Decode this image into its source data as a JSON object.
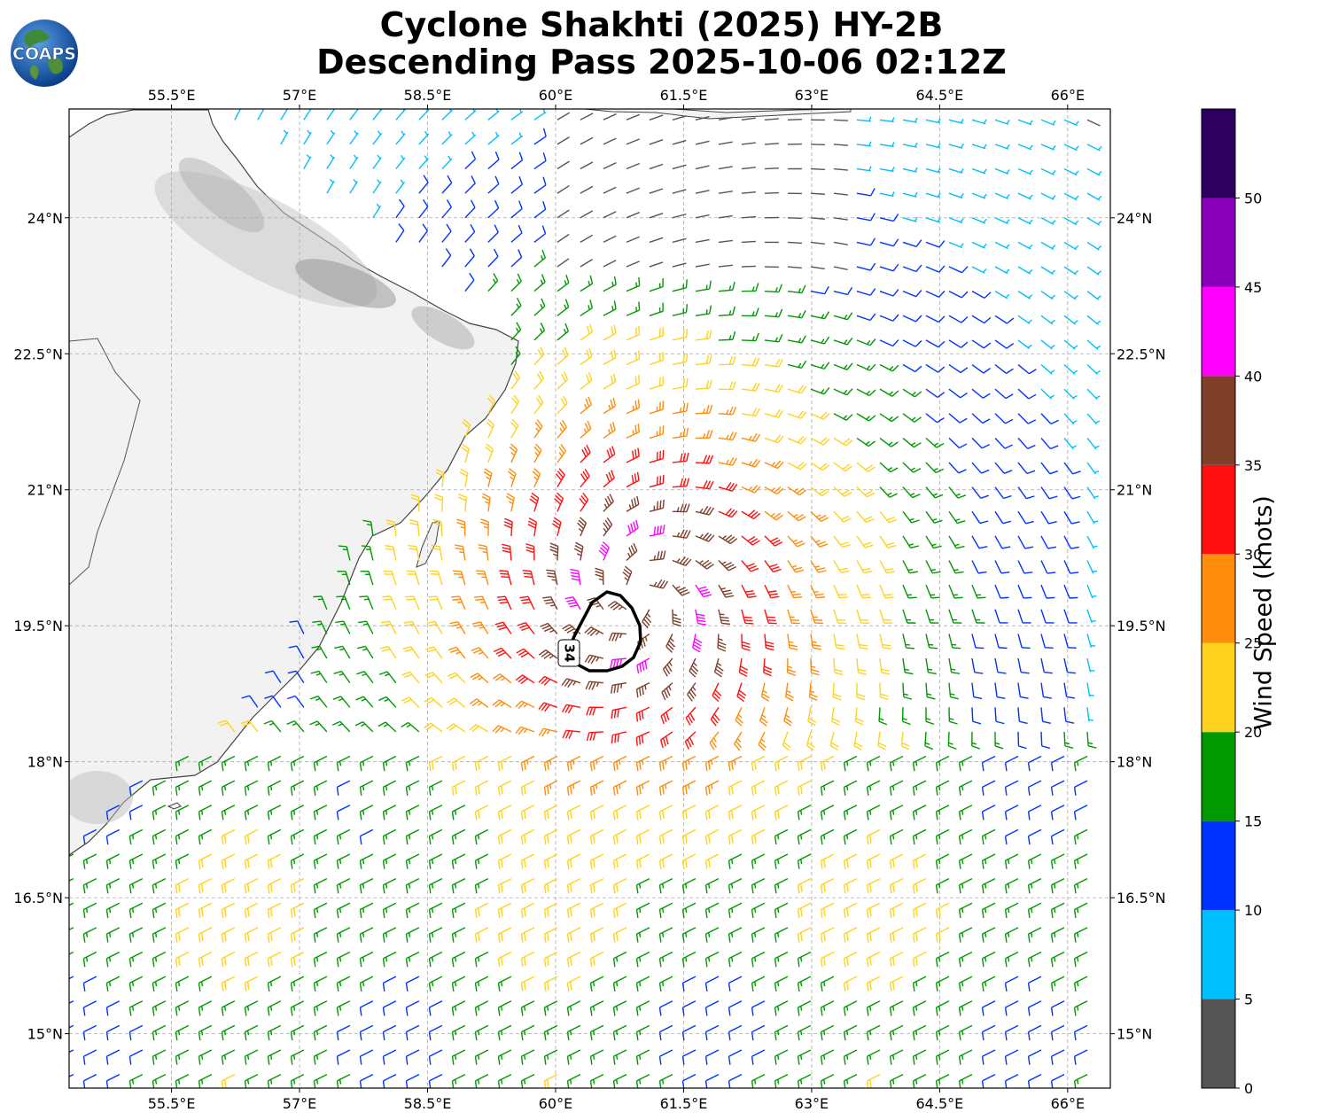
{
  "title": {
    "line1": "Cyclone Shakhti (2025) HY-2B",
    "line2": "Descending Pass 2025-10-06 02:12Z"
  },
  "logo_text": "COAPS",
  "map": {
    "lon_range": [
      54.3,
      66.5
    ],
    "lat_range": [
      14.4,
      25.2
    ],
    "lon_ticks": [
      "55.5°E",
      "57°E",
      "58.5°E",
      "60°E",
      "61.5°E",
      "63°E",
      "64.5°E",
      "66°E"
    ],
    "lat_ticks": [
      "24°N",
      "22.5°N",
      "21°N",
      "19.5°N",
      "18°N",
      "16.5°N",
      "15°N"
    ],
    "gridlines": true,
    "storm_center": {
      "lon": 61.0,
      "lat": 19.8
    },
    "contour_label": "34",
    "contour_color": "#000000"
  },
  "colorbar": {
    "label": "Wind Speed (knots)",
    "tick_labels": [
      "0",
      "5",
      "10",
      "15",
      "20",
      "25",
      "30",
      "35",
      "40",
      "45",
      "50"
    ],
    "bins": [
      {
        "range": [
          0,
          5
        ],
        "color": "#555555"
      },
      {
        "range": [
          5,
          10
        ],
        "color": "#00bfff"
      },
      {
        "range": [
          10,
          15
        ],
        "color": "#0033ff"
      },
      {
        "range": [
          15,
          20
        ],
        "color": "#009900"
      },
      {
        "range": [
          20,
          25
        ],
        "color": "#ffd21f"
      },
      {
        "range": [
          25,
          30
        ],
        "color": "#ff8c0a"
      },
      {
        "range": [
          30,
          35
        ],
        "color": "#ff1010"
      },
      {
        "range": [
          35,
          40
        ],
        "color": "#7f3f2a"
      },
      {
        "range": [
          40,
          45
        ],
        "color": "#ff00ff"
      },
      {
        "range": [
          45,
          50
        ],
        "color": "#8a00b8"
      },
      {
        "range": [
          50,
          55
        ],
        "color": "#2d005e"
      }
    ]
  }
}
